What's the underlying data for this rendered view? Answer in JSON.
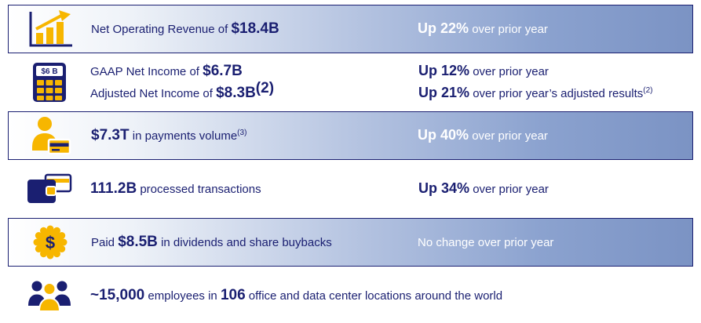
{
  "theme": {
    "navy": "#1a1f71",
    "gold": "#f7b600",
    "gradient_end": "#7b93c4",
    "row_border": "#1a1f71"
  },
  "icon_labels": {
    "calculator_display": "$6 B",
    "dollar_badge_symbol": "$"
  },
  "rows": [
    {
      "id": "net-operating-revenue",
      "icon": "bar-chart-growth",
      "highlight": true,
      "left_lines": [
        [
          {
            "text": "Net Operating Revenue of ",
            "bold": false
          },
          {
            "text": "$18.4B",
            "bold": true
          }
        ]
      ],
      "right_lines": [
        [
          {
            "text": "Up 22%",
            "bold": true
          },
          {
            "text": " over prior year",
            "bold": false
          }
        ]
      ]
    },
    {
      "id": "net-income",
      "icon": "calculator",
      "highlight": false,
      "left_lines": [
        [
          {
            "text": "GAAP Net Income of ",
            "bold": false
          },
          {
            "text": "$6.7B",
            "bold": true
          }
        ],
        [
          {
            "text": "Adjusted Net Income of ",
            "bold": false
          },
          {
            "text": "$8.3B",
            "bold": true
          },
          {
            "text": "(2)",
            "bold": true,
            "sup": true
          }
        ]
      ],
      "right_lines": [
        [
          {
            "text": "Up 12%",
            "bold": true
          },
          {
            "text": " over prior year",
            "bold": false
          }
        ],
        [
          {
            "text": "Up 21%",
            "bold": true
          },
          {
            "text": " over prior year’s adjusted results",
            "bold": false
          },
          {
            "text": "(2)",
            "bold": false,
            "sup": true
          }
        ]
      ]
    },
    {
      "id": "payments-volume",
      "icon": "person-card",
      "highlight": true,
      "left_lines": [
        [
          {
            "text": "$7.3T",
            "bold": true
          },
          {
            "text": " in payments volume",
            "bold": false
          },
          {
            "text": "(3)",
            "bold": false,
            "sup": true
          }
        ]
      ],
      "right_lines": [
        [
          {
            "text": "Up 40%",
            "bold": true
          },
          {
            "text": " over prior year",
            "bold": false
          }
        ]
      ]
    },
    {
      "id": "processed-transactions",
      "icon": "wallet-card",
      "highlight": false,
      "left_lines": [
        [
          {
            "text": "111.2B",
            "bold": true
          },
          {
            "text": " processed transactions",
            "bold": false
          }
        ]
      ],
      "right_lines": [
        [
          {
            "text": "Up 34%",
            "bold": true
          },
          {
            "text": " over prior year",
            "bold": false
          }
        ]
      ]
    },
    {
      "id": "dividends-buybacks",
      "icon": "dollar-badge",
      "highlight": true,
      "left_lines": [
        [
          {
            "text": "Paid ",
            "bold": false
          },
          {
            "text": "$8.5B",
            "bold": true
          },
          {
            "text": " in dividends and share buybacks",
            "bold": false
          }
        ]
      ],
      "right_lines": [
        [
          {
            "text": "No change over prior year",
            "bold": false
          }
        ]
      ]
    },
    {
      "id": "employees",
      "icon": "people-group",
      "highlight": false,
      "left_lines": [
        [
          {
            "text": "~15,000",
            "bold": true
          },
          {
            "text": " employees in ",
            "bold": false
          },
          {
            "text": "106",
            "bold": true
          },
          {
            "text": " office and data center locations around the world",
            "bold": false
          }
        ]
      ],
      "right_lines": []
    }
  ]
}
